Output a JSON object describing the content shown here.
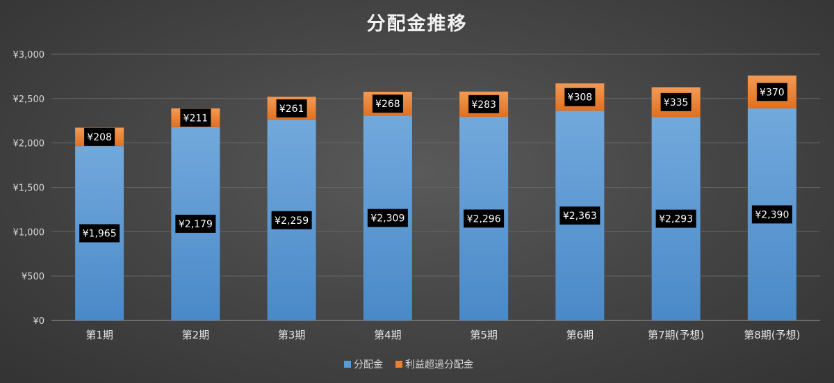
{
  "chart_data": {
    "type": "bar",
    "stacked": true,
    "title": "分配金推移",
    "xlabel": "",
    "ylabel": "",
    "ylim": [
      0,
      3000
    ],
    "yticks": [
      0,
      500,
      1000,
      1500,
      2000,
      2500,
      3000
    ],
    "ytick_labels": [
      "¥0",
      "¥500",
      "¥1,000",
      "¥1,500",
      "¥2,000",
      "¥2,500",
      "¥3,000"
    ],
    "grid": true,
    "legend": "bottom",
    "categories": [
      "第1期",
      "第2期",
      "第3期",
      "第4期",
      "第5期",
      "第6期",
      "第7期(予想)",
      "第8期(予想)"
    ],
    "series": [
      {
        "name": "分配金",
        "color": "#5b9bd5",
        "values": [
          1965,
          2179,
          2259,
          2309,
          2296,
          2363,
          2293,
          2390
        ],
        "labels": [
          "¥1,965",
          "¥2,179",
          "¥2,259",
          "¥2,309",
          "¥2,296",
          "¥2,363",
          "¥2,293",
          "¥2,390"
        ]
      },
      {
        "name": "利益超過分配金",
        "color": "#ed7d31",
        "values": [
          208,
          211,
          261,
          268,
          283,
          308,
          335,
          370
        ],
        "labels": [
          "¥208",
          "¥211",
          "¥261",
          "¥268",
          "¥283",
          "¥308",
          "¥335",
          "¥370"
        ]
      }
    ]
  }
}
